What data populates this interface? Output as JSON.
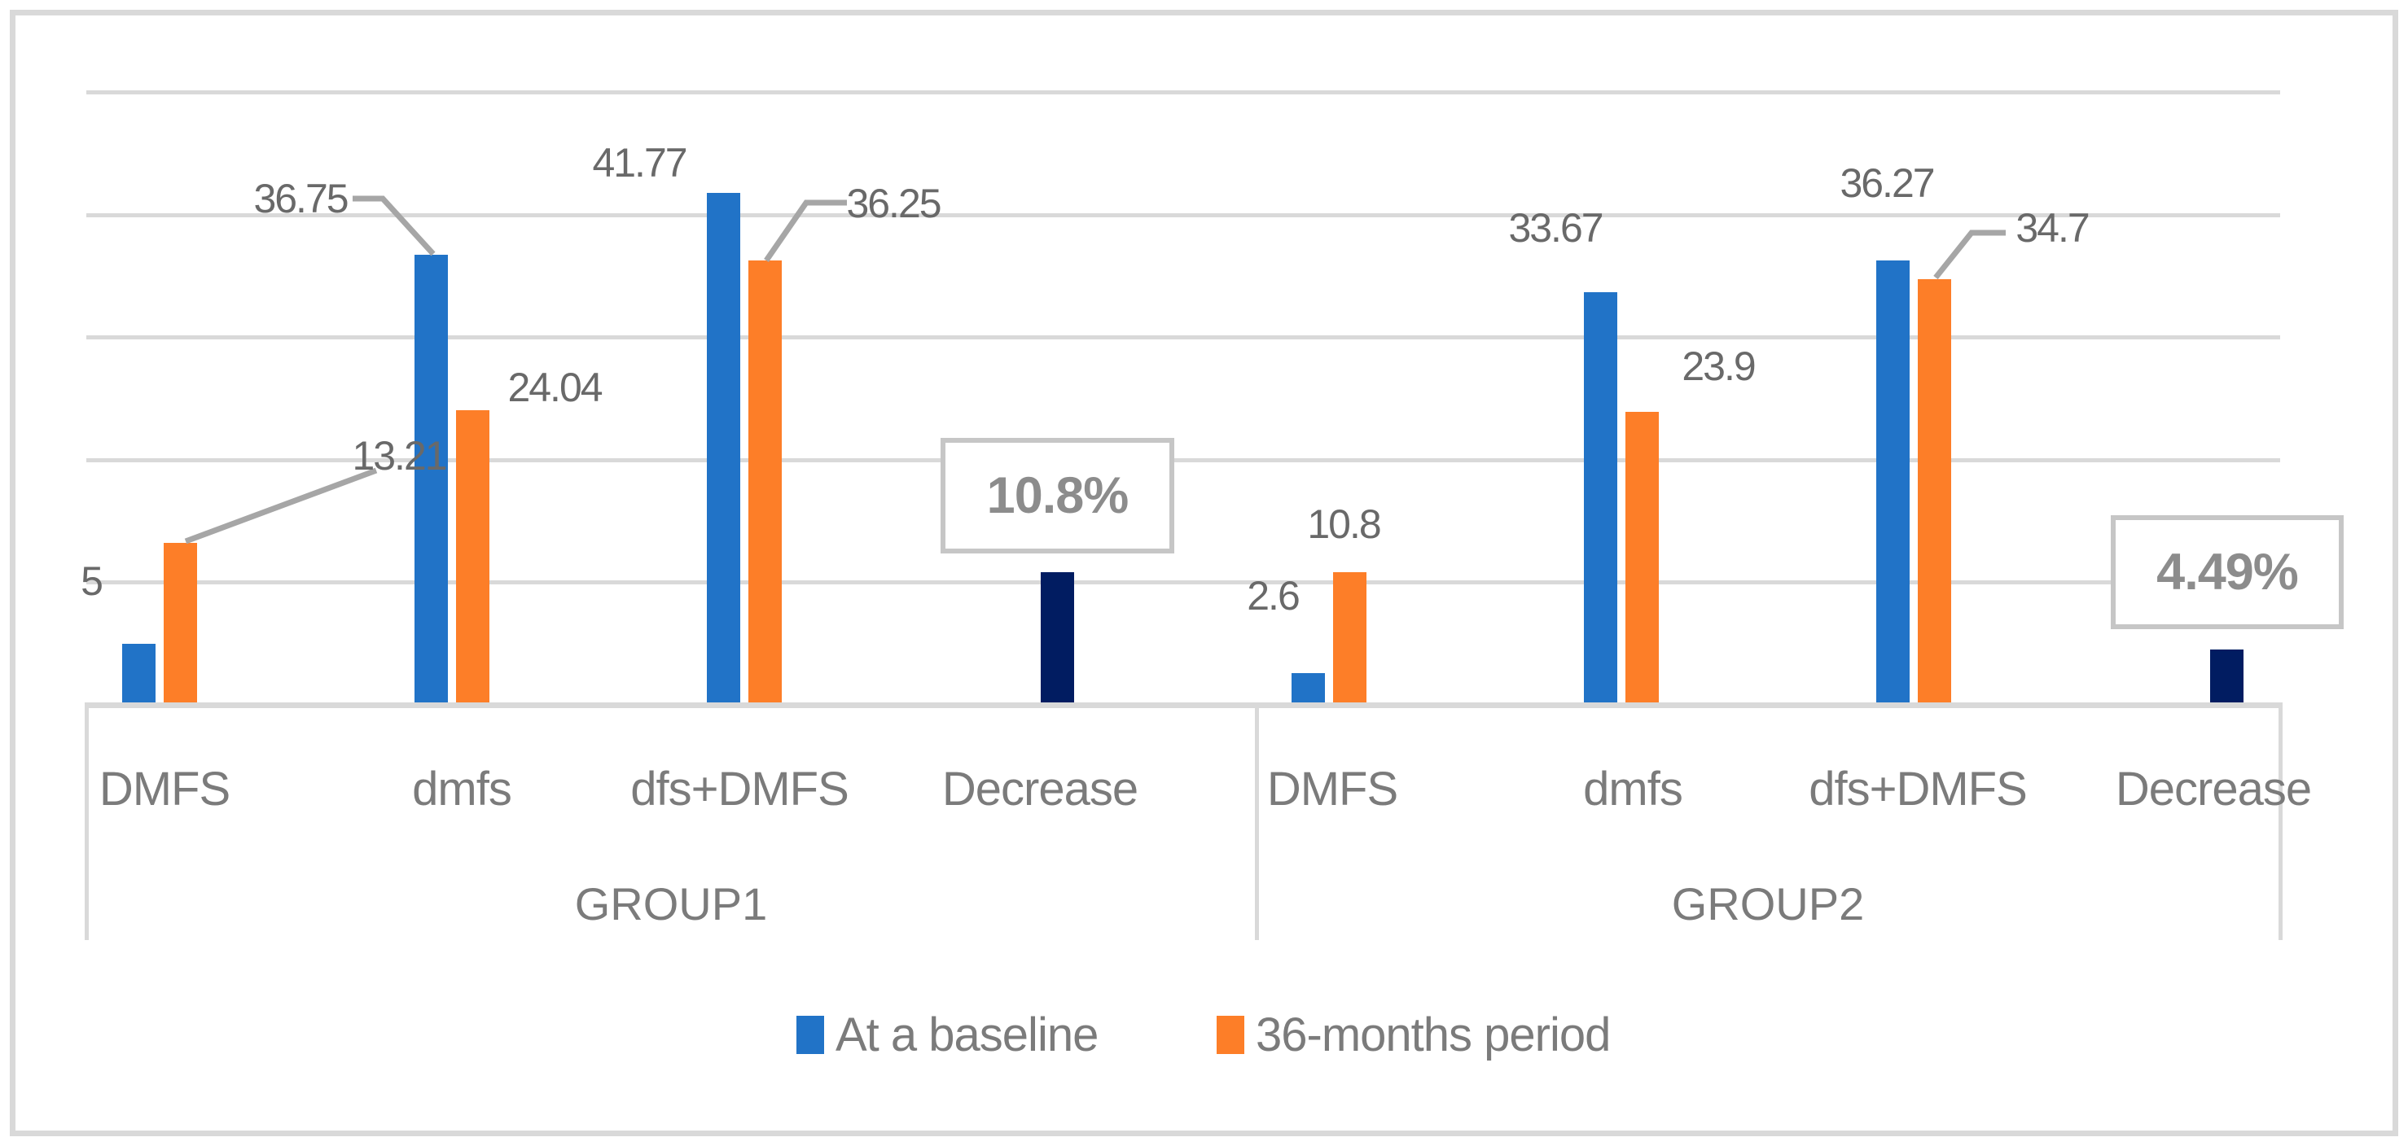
{
  "chart_data": {
    "type": "bar",
    "title": "",
    "ylim": [
      0,
      50
    ],
    "gridline_values": [
      10,
      20,
      30,
      40,
      50
    ],
    "grid": true,
    "legend_position": "bottom",
    "axis_groups": [
      {
        "label": "GROUP1",
        "categories": [
          "DMFS",
          "dmfs",
          "dfs+DMFS",
          "Decrease"
        ]
      },
      {
        "label": "GROUP2",
        "categories": [
          "DMFS",
          "dmfs",
          "dfs+DMFS",
          "Decrease"
        ]
      }
    ],
    "series": [
      {
        "name": "At a baseline",
        "color": "#2173C7",
        "in_legend": true,
        "values": [
          5,
          36.75,
          41.77,
          null,
          2.6,
          33.67,
          36.27,
          null
        ]
      },
      {
        "name": "36-months period",
        "color": "#FD7E28",
        "in_legend": true,
        "values": [
          13.21,
          24.04,
          36.25,
          null,
          10.8,
          23.9,
          34.7,
          null
        ]
      },
      {
        "name": "Decrease",
        "color": "#011C61",
        "in_legend": false,
        "values": [
          null,
          null,
          null,
          10.8,
          null,
          null,
          null,
          4.49
        ]
      }
    ],
    "point_labels": [
      {
        "id": "g1-c0-s0",
        "text": "5"
      },
      {
        "id": "g1-c0-s1",
        "text": "13.21"
      },
      {
        "id": "g1-c1-s0",
        "text": "36.75"
      },
      {
        "id": "g1-c1-s1",
        "text": "24.04"
      },
      {
        "id": "g1-c2-s0",
        "text": "41.77"
      },
      {
        "id": "g1-c2-s1",
        "text": "36.25"
      },
      {
        "id": "g2-c0-s0",
        "text": "2.6"
      },
      {
        "id": "g2-c0-s1",
        "text": "10.8"
      },
      {
        "id": "g2-c1-s0",
        "text": "33.67"
      },
      {
        "id": "g2-c1-s1",
        "text": "23.9"
      },
      {
        "id": "g2-c2-s0",
        "text": "36.27"
      },
      {
        "id": "g2-c2-s1",
        "text": "34.7"
      }
    ],
    "boxed_labels": [
      {
        "id": "decrease-group1",
        "text": "10.8%"
      },
      {
        "id": "decrease-group2",
        "text": "4.49%"
      }
    ],
    "colors": {
      "baseline_blue": "#2173C7",
      "period_orange": "#FD7E28",
      "decrease_navy": "#011C61",
      "gridline_gray": "#D9D9D9",
      "label_gray": "#696969",
      "axis_text_gray": "#7B7B7B",
      "box_border_gray": "#C6C6C6",
      "leader_gray": "#A6A6A6"
    }
  }
}
